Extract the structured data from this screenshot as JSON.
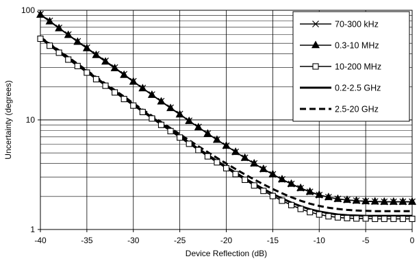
{
  "chart_data": {
    "type": "line",
    "title": "",
    "xlabel": "Device Reflection (dB)",
    "ylabel": "Uncertainty (degrees)",
    "xlim": [
      -40,
      0
    ],
    "ylim": [
      1,
      100
    ],
    "yscale": "log",
    "grid": true,
    "legend_position": "top-right",
    "x_ticks": [
      -40,
      -35,
      -30,
      -25,
      -20,
      -15,
      -10,
      -5,
      0
    ],
    "y_ticks": [
      1,
      10,
      100
    ],
    "x_tick_labels": [
      "-40",
      "-35",
      "-30",
      "-25",
      "-20",
      "-15",
      "-10",
      "-5",
      "0"
    ],
    "y_tick_labels": [
      "1",
      "10",
      "100"
    ],
    "series": [
      {
        "name": "70-300 kHz",
        "marker": "x",
        "line": "solid",
        "x": [
          -40,
          -39,
          -38,
          -37,
          -36,
          -35,
          -34,
          -33,
          -32,
          -31,
          -30,
          -29,
          -28,
          -27,
          -26,
          -25,
          -24,
          -23,
          -22,
          -21,
          -20,
          -19,
          -18,
          -17,
          -16,
          -15,
          -14,
          -13,
          -12,
          -11,
          -10,
          -9,
          -8,
          -7,
          -6,
          -5,
          -4,
          -3,
          -2,
          -1,
          0
        ],
        "y": [
          92.0,
          80.0,
          69.0,
          60.0,
          52.0,
          45.5,
          39.5,
          34.5,
          30.0,
          26.0,
          22.5,
          19.5,
          17.0,
          14.8,
          12.9,
          11.3,
          9.8,
          8.6,
          7.5,
          6.6,
          5.8,
          5.1,
          4.5,
          4.0,
          3.55,
          3.18,
          2.86,
          2.6,
          2.38,
          2.2,
          2.06,
          1.97,
          1.9,
          1.86,
          1.83,
          1.81,
          1.8,
          1.79,
          1.79,
          1.79,
          1.79
        ]
      },
      {
        "name": "0.3-10 MHz",
        "marker": "triangle",
        "line": "solid",
        "x": [
          -40,
          -39,
          -38,
          -37,
          -36,
          -35,
          -34,
          -33,
          -32,
          -31,
          -30,
          -29,
          -28,
          -27,
          -26,
          -25,
          -24,
          -23,
          -22,
          -21,
          -20,
          -19,
          -18,
          -17,
          -16,
          -15,
          -14,
          -13,
          -12,
          -11,
          -10,
          -9,
          -8,
          -7,
          -6,
          -5,
          -4,
          -3,
          -2,
          -1,
          0
        ],
        "y": [
          91.0,
          79.0,
          68.5,
          59.5,
          51.5,
          45.0,
          39.0,
          34.0,
          29.6,
          25.7,
          22.3,
          19.4,
          16.9,
          14.7,
          12.8,
          11.2,
          9.75,
          8.55,
          7.48,
          6.58,
          5.8,
          5.1,
          4.5,
          4.0,
          3.56,
          3.19,
          2.87,
          2.61,
          2.39,
          2.21,
          2.07,
          1.97,
          1.9,
          1.86,
          1.83,
          1.81,
          1.8,
          1.79,
          1.79,
          1.79,
          1.79
        ]
      },
      {
        "name": "10-200 MHz",
        "marker": "square",
        "line": "solid",
        "x": [
          -40,
          -39,
          -38,
          -37,
          -36,
          -35,
          -34,
          -33,
          -32,
          -31,
          -30,
          -29,
          -28,
          -27,
          -26,
          -25,
          -24,
          -23,
          -22,
          -21,
          -20,
          -19,
          -18,
          -17,
          -16,
          -15,
          -14,
          -13,
          -12,
          -11,
          -10,
          -9,
          -8,
          -7,
          -6,
          -5,
          -4,
          -3,
          -2,
          -1,
          0
        ],
        "y": [
          55.0,
          47.5,
          41.0,
          35.5,
          31.0,
          27.0,
          23.5,
          20.5,
          17.8,
          15.5,
          13.5,
          11.8,
          10.3,
          9.0,
          7.9,
          6.9,
          6.05,
          5.3,
          4.65,
          4.1,
          3.62,
          3.2,
          2.84,
          2.52,
          2.25,
          2.02,
          1.83,
          1.67,
          1.54,
          1.44,
          1.37,
          1.32,
          1.29,
          1.27,
          1.26,
          1.26,
          1.25,
          1.25,
          1.25,
          1.25,
          1.25
        ]
      },
      {
        "name": "0.2-2.5 GHz",
        "marker": "none",
        "line": "solid",
        "x": [
          -40,
          -39,
          -38,
          -37,
          -36,
          -35,
          -34,
          -33,
          -32,
          -31,
          -30,
          -29,
          -28,
          -27,
          -26,
          -25,
          -24,
          -23,
          -22,
          -21,
          -20,
          -19,
          -18,
          -17,
          -16,
          -15,
          -14,
          -13,
          -12,
          -11,
          -10,
          -9,
          -8,
          -7,
          -6,
          -5,
          -4,
          -3,
          -2,
          -1,
          0
        ],
        "y": [
          56.5,
          49.0,
          42.5,
          36.8,
          32.0,
          27.8,
          24.2,
          21.0,
          18.3,
          15.9,
          13.9,
          12.1,
          10.6,
          9.25,
          8.1,
          7.1,
          6.22,
          5.45,
          4.8,
          4.22,
          3.73,
          3.3,
          2.93,
          2.61,
          2.34,
          2.11,
          1.92,
          1.76,
          1.63,
          1.53,
          1.46,
          1.41,
          1.37,
          1.35,
          1.34,
          1.33,
          1.33,
          1.33,
          1.33,
          1.33,
          1.33
        ]
      },
      {
        "name": "2.5-20 GHz",
        "marker": "none",
        "line": "dashed",
        "x": [
          -40,
          -39,
          -38,
          -37,
          -36,
          -35,
          -34,
          -33,
          -32,
          -31,
          -30,
          -29,
          -28,
          -27,
          -26,
          -25,
          -24,
          -23,
          -22,
          -21,
          -20,
          -19,
          -18,
          -17,
          -16,
          -15,
          -14,
          -13,
          -12,
          -11,
          -10,
          -9,
          -8,
          -7,
          -6,
          -5,
          -4,
          -3,
          -2,
          -1,
          0
        ],
        "y": [
          57.0,
          49.5,
          43.0,
          37.3,
          32.4,
          28.2,
          24.6,
          21.4,
          18.7,
          16.3,
          14.2,
          12.4,
          10.9,
          9.55,
          8.4,
          7.4,
          6.52,
          5.75,
          5.08,
          4.5,
          4.0,
          3.56,
          3.18,
          2.86,
          2.58,
          2.34,
          2.14,
          1.97,
          1.83,
          1.72,
          1.64,
          1.58,
          1.54,
          1.51,
          1.49,
          1.48,
          1.47,
          1.47,
          1.47,
          1.47,
          1.47
        ]
      }
    ]
  }
}
